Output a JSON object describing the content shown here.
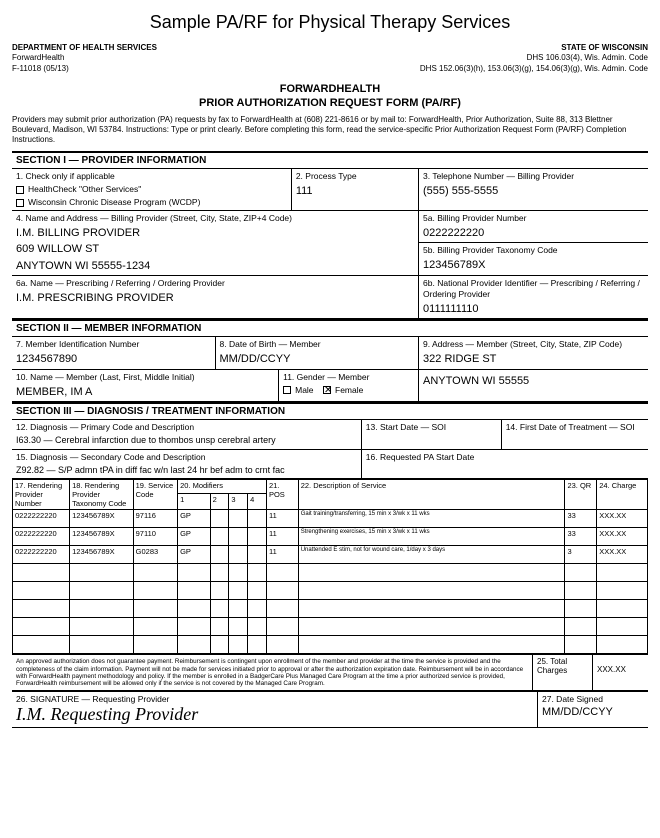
{
  "page_title": "Sample PA/RF for Physical Therapy Services",
  "header": {
    "dept": "DEPARTMENT OF HEALTH SERVICES",
    "fh": "ForwardHealth",
    "form_no": "F-11018 (05/13)",
    "state": "STATE OF WISCONSIN",
    "code1": "DHS 106.03(4), Wis. Admin. Code",
    "code2": "DHS 152.06(3)(h), 153.06(3)(g), 154.06(3)(g), Wis. Admin. Code"
  },
  "form_heading1": "FORWARDHEALTH",
  "form_heading2": "PRIOR AUTHORIZATION REQUEST FORM (PA/RF)",
  "intro": "Providers may submit prior authorization (PA) requests by fax to ForwardHealth at (608) 221-8616 or by mail to: ForwardHealth, Prior Authorization, Suite 88, 313 Blettner Boulevard, Madison, WI 53784. Instructions: Type or print clearly. Before completing this form, read the service-specific Prior Authorization Request Form (PA/RF) Completion Instructions.",
  "s1": {
    "title": "SECTION I — PROVIDER INFORMATION",
    "check_label": "1. Check only if applicable",
    "opt1": "HealthCheck \"Other Services\"",
    "opt2": "Wisconsin Chronic Disease Program (WCDP)",
    "proc_label": "2. Process Type",
    "proc_val": "111",
    "tel_label": "3. Telephone Number — Billing Provider",
    "tel_val": "(555) 555-5555",
    "addr_label": "4. Name and Address — Billing Provider (Street, City, State, ZIP+4 Code)",
    "addr_l1": "I.M. BILLING PROVIDER",
    "addr_l2": "609 WILLOW ST",
    "addr_l3": "ANYTOWN WI  55555-1234",
    "bpn_label": "5a. Billing Provider Number",
    "bpn_val": "0222222220",
    "tax_label": "5b. Billing Provider Taxonomy Code",
    "tax_val": "123456789X",
    "presc_label": "6a. Name — Prescribing / Referring / Ordering Provider",
    "presc_val": "I.M. PRESCRIBING PROVIDER",
    "npi_label": "6b. National Provider Identifier — Prescribing / Referring / Ordering Provider",
    "npi_val": "0111111110"
  },
  "s2": {
    "title": "SECTION II — MEMBER INFORMATION",
    "mid_label": "7. Member Identification Number",
    "mid_val": "1234567890",
    "dob_label": "8. Date of Birth — Member",
    "dob_val": "MM/DD/CCYY",
    "maddr_label": "9. Address — Member (Street, City, State, ZIP Code)",
    "maddr_l1": "322 RIDGE ST",
    "maddr_l2": "ANYTOWN WI  55555",
    "mname_label": "10. Name — Member (Last, First, Middle Initial)",
    "mname_val": "MEMBER, IM A",
    "gender_label": "11. Gender — Member",
    "male": "Male",
    "female": "Female"
  },
  "s3": {
    "title": "SECTION III — DIAGNOSIS / TREATMENT INFORMATION",
    "dx1_label": "12. Diagnosis — Primary Code and Description",
    "dx1_val": "I63.30 — Cerebral infarction due to thombos unsp cerebral artery",
    "start_label": "13. Start Date — SOI",
    "first_label": "14. First Date of Treatment — SOI",
    "dx2_label": "15. Diagnosis — Secondary Code and Description",
    "dx2_val": "Z92.82 — S/P admn tPA in diff fac w/n last 24 hr bef adm to crnt fac",
    "req_label": "16. Requested PA Start Date"
  },
  "svc": {
    "h17": "17. Rendering Provider Number",
    "h18": "18. Rendering Provider Taxonomy Code",
    "h19": "19. Service Code",
    "h20": "20. Modifiers",
    "m1": "1",
    "m2": "2",
    "m3": "3",
    "m4": "4",
    "h21": "21. POS",
    "h22": "22. Description of Service",
    "h23": "23. QR",
    "h24": "24. Charge",
    "rows": [
      {
        "rpn": "0222222220",
        "tax": "123456789X",
        "sc": "97116",
        "m1": "GP",
        "pos": "11",
        "desc": "Gait training/transferring, 15 min x 3/wk x 11 wks",
        "qr": "33",
        "chg": "XXX.XX"
      },
      {
        "rpn": "0222222220",
        "tax": "123456789X",
        "sc": "97110",
        "m1": "GP",
        "pos": "11",
        "desc": "Strengthening exercises, 15 min x 3/wk x 11 wks",
        "qr": "33",
        "chg": "XXX.XX"
      },
      {
        "rpn": "0222222220",
        "tax": "123456789X",
        "sc": "G0283",
        "m1": "GP",
        "pos": "11",
        "desc": "Unattended E stim, not for wound care, 1/day x 3 days",
        "qr": "3",
        "chg": "XXX.XX"
      }
    ]
  },
  "footer": {
    "disclaimer": "An approved authorization does not guarantee payment. Reimbursement is contingent upon enrollment of the member and provider at the time the service is provided and the completeness of the claim information. Payment will not be made for services initiated prior to approval or after the authorization expiration date. Reimbursement will be in accordance with ForwardHealth payment methodology and policy. If the member is enrolled in a BadgerCare Plus Managed Care Program at the time a prior authorized service is provided, ForwardHealth reimbursement will be allowed only if the service is not covered by the Managed Care Program.",
    "tot_label": "25. Total Charges",
    "tot_val": "XXX.XX",
    "sig_label": "26. SIGNATURE — Requesting Provider",
    "sig_val": "I.M. Requesting Provider",
    "date_label": "27. Date Signed",
    "date_val": "MM/DD/CCYY"
  }
}
